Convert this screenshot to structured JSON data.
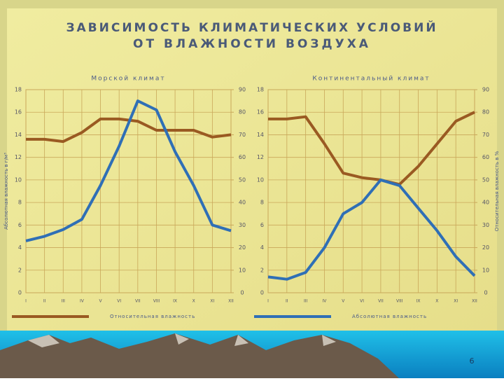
{
  "title": "ЗАВИСИМОСТЬ КЛИМАТИЧЕСКИХ УСЛОВИЙ",
  "subtitle": "ОТ ВЛАЖНОСТИ ВОЗДУХА",
  "page_number": "6",
  "chart_data": [
    {
      "type": "line",
      "title": "Морской климат",
      "ylabel": "Абсолютная влажность в г/м³",
      "categories": [
        "I",
        "II",
        "III",
        "IV",
        "V",
        "VI",
        "VII",
        "VIII",
        "IX",
        "X",
        "XI",
        "XII"
      ],
      "ylim": [
        0,
        18
      ],
      "yticks": [
        0,
        2,
        4,
        6,
        8,
        10,
        12,
        14,
        16,
        18
      ],
      "y2lim": [
        0,
        90
      ],
      "y2ticks": [
        0,
        10,
        20,
        30,
        40,
        50,
        60,
        70,
        80,
        90
      ],
      "grid": true,
      "series": [
        {
          "name": "Относительная влажность",
          "color": "#9a5a22",
          "axis": "y2",
          "values": [
            68,
            68,
            67,
            71,
            77,
            77,
            76,
            72,
            72,
            72,
            69,
            70
          ]
        },
        {
          "name": "Абсолютная влажность",
          "color": "#2f6fb6",
          "values": [
            4.6,
            5.0,
            5.6,
            6.5,
            9.5,
            13,
            17,
            16.2,
            12.5,
            9.5,
            6,
            5.5
          ]
        }
      ]
    },
    {
      "type": "line",
      "title": "Континентальный климат",
      "y2label": "Относительная влажность в %",
      "categories": [
        "I",
        "II",
        "III",
        "IV",
        "V",
        "VI",
        "VII",
        "VIII",
        "IX",
        "X",
        "XI",
        "XII"
      ],
      "ylim": [
        0,
        18
      ],
      "yticks": [
        0,
        2,
        4,
        6,
        8,
        10,
        12,
        14,
        16,
        18
      ],
      "y2lim": [
        0,
        90
      ],
      "y2ticks": [
        0,
        10,
        20,
        30,
        40,
        50,
        60,
        70,
        80,
        90
      ],
      "grid": true,
      "series": [
        {
          "name": "Относительная влажность",
          "color": "#9a5a22",
          "axis": "y2",
          "values": [
            77,
            77,
            78,
            66,
            53,
            51,
            50,
            48,
            56,
            66,
            76,
            80
          ]
        },
        {
          "name": "Абсолютная влажность",
          "color": "#2f6fb6",
          "values": [
            1.4,
            1.2,
            1.8,
            4,
            7,
            8,
            10,
            9.5,
            7.5,
            5.5,
            3.2,
            1.5
          ]
        }
      ]
    }
  ]
}
